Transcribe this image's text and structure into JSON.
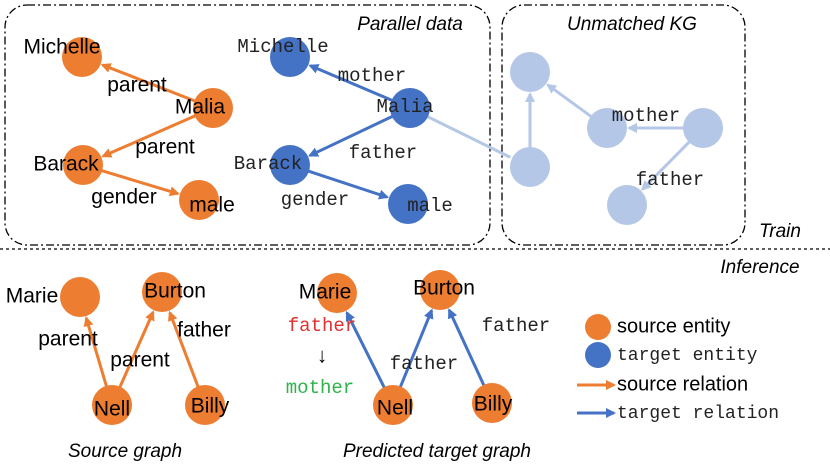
{
  "panels": {
    "parallel_data": "Parallel data",
    "unmatched_kg": "Unmatched KG",
    "train": "Train",
    "inference": "Inference"
  },
  "train_source": {
    "nodes": [
      "Michelle",
      "Malia",
      "Barack",
      "male"
    ],
    "edges": [
      "parent",
      "parent",
      "gender"
    ]
  },
  "train_target": {
    "nodes": [
      "Michelle",
      "Malia",
      "Barack",
      "male"
    ],
    "edges": [
      "mother",
      "father",
      "gender"
    ]
  },
  "unmatched_kg": {
    "edges": [
      "mother",
      "father"
    ]
  },
  "inference_source": {
    "nodes": [
      "Marie",
      "Burton",
      "Nell",
      "Billy"
    ],
    "edges": [
      "parent",
      "parent",
      "father"
    ],
    "caption": "Source graph"
  },
  "inference_target": {
    "nodes": [
      "Marie",
      "Burton",
      "Nell",
      "Billy"
    ],
    "relabel": {
      "from": "father",
      "arrow": "↓",
      "to": "mother"
    },
    "edges": [
      "father",
      "father"
    ],
    "caption": "Predicted target graph"
  },
  "legend": [
    "source entity",
    "target entity",
    "source relation",
    "target relation"
  ]
}
